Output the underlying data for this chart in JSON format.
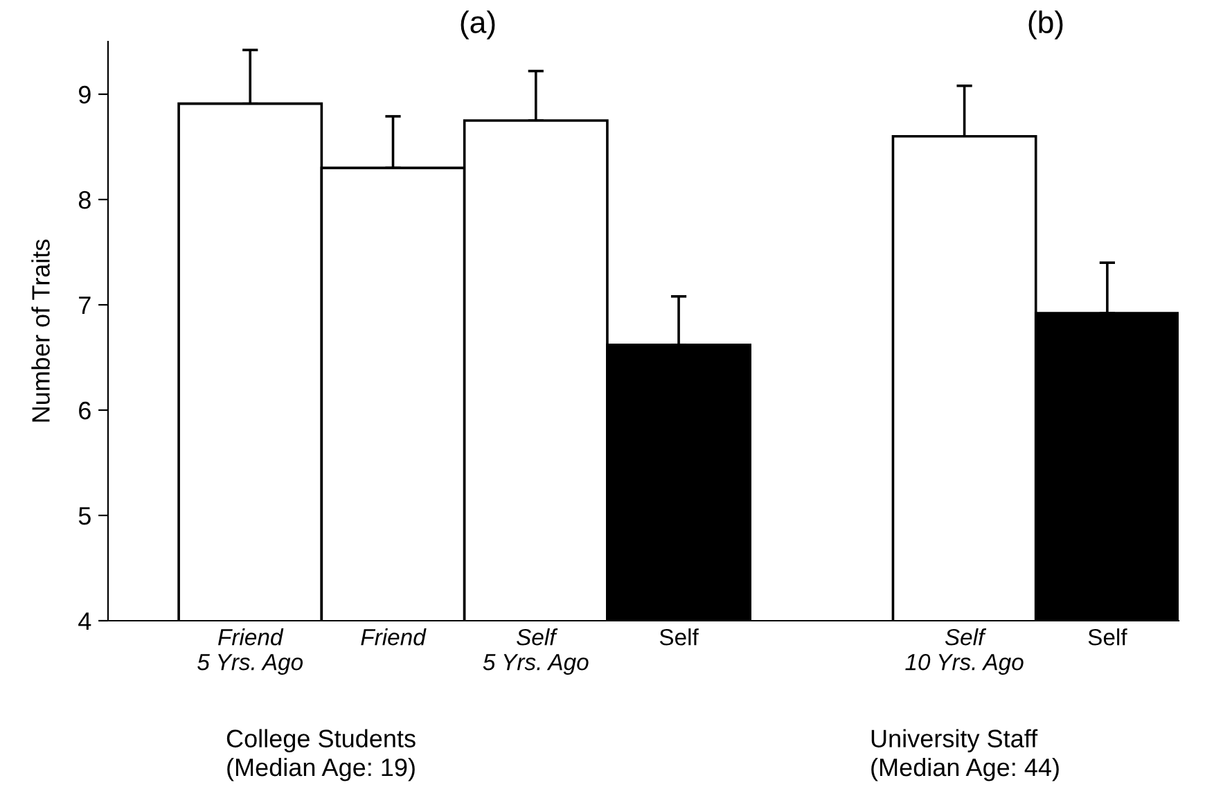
{
  "chart_data": {
    "type": "bar",
    "ylabel": "Number of Traits",
    "categories": [
      "Friend\n5 Yrs. Ago",
      "Friend",
      "Self\n5 Yrs. Ago",
      "Self",
      null,
      "Self\n10 Yrs. Ago",
      "Self"
    ],
    "values": [
      8.91,
      8.3,
      8.75,
      6.62,
      null,
      8.6,
      6.92
    ],
    "errors": [
      [
        8.91,
        9.42
      ],
      [
        8.3,
        8.79
      ],
      [
        8.75,
        9.22
      ],
      [
        6.62,
        7.08
      ],
      null,
      [
        8.6,
        9.08
      ],
      [
        6.92,
        7.4
      ]
    ],
    "colors": [
      "#ffffff",
      "#ffffff",
      "#ffffff",
      "#000000",
      "#ffffff",
      "#ffffff",
      "#000000"
    ],
    "ylim": [
      4,
      9.5
    ],
    "yticks": [
      4,
      5,
      6,
      7,
      8,
      9
    ],
    "grid": false,
    "legend": false,
    "annotations": [
      "(a)",
      "(b)",
      "College Students\n(Median Age: 19)",
      "University Staff\n(Median Age: 44)"
    ]
  }
}
